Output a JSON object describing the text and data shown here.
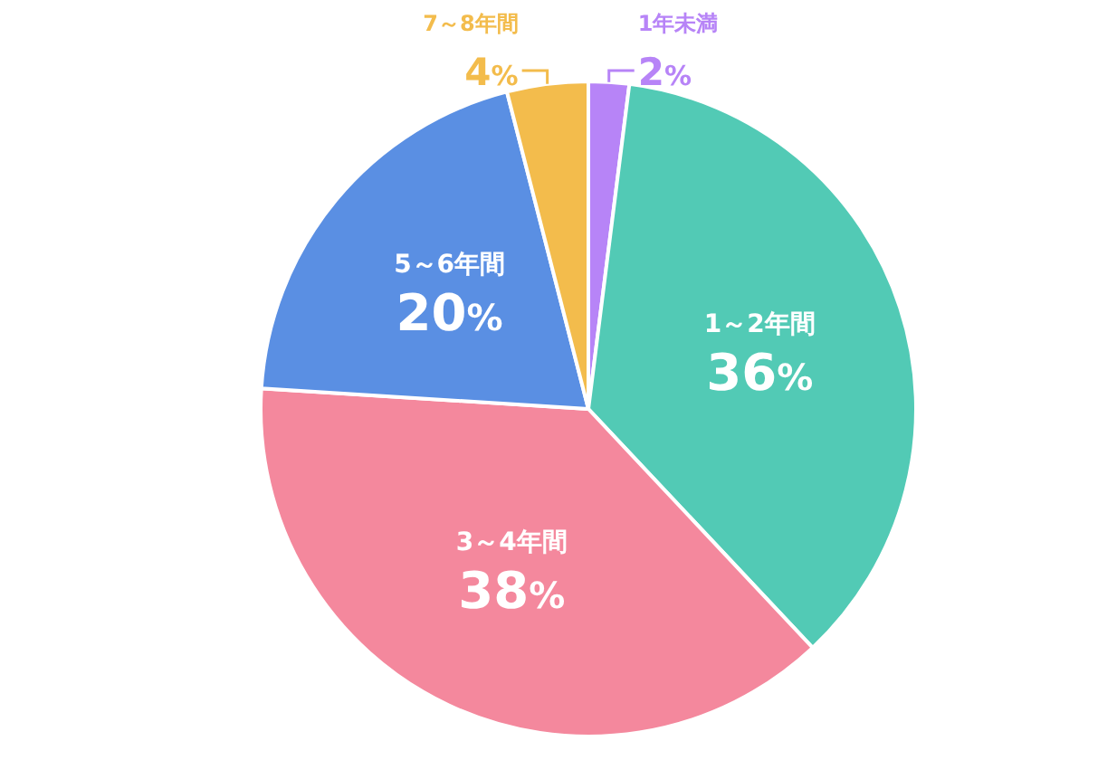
{
  "chart_data": {
    "type": "pie",
    "categories": [
      "1年未満",
      "1～2年間",
      "3～4年間",
      "5～6年間",
      "7～8年間"
    ],
    "values": [
      2,
      36,
      38,
      20,
      4
    ],
    "colors": [
      "#b784f7",
      "#52cab5",
      "#f4889d",
      "#5a8fe3",
      "#f3bc4c"
    ],
    "value_labels": [
      "2%",
      "36%",
      "38%",
      "20%",
      "4%"
    ]
  }
}
